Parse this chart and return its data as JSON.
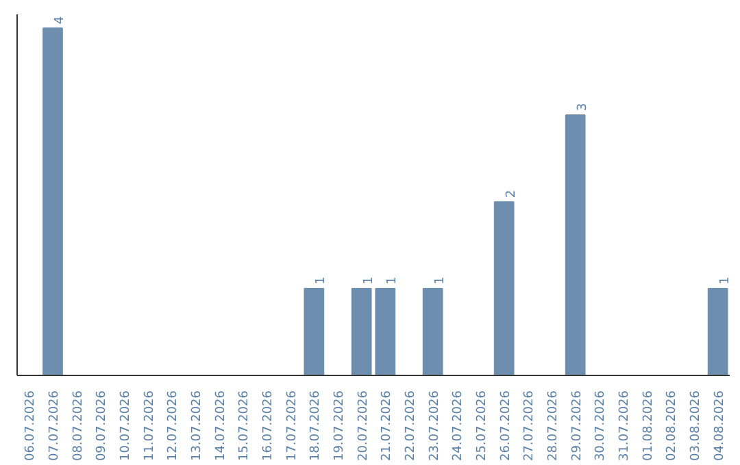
{
  "chart_data": {
    "type": "bar",
    "categories": [
      "06.07.2026",
      "07.07.2026",
      "08.07.2026",
      "09.07.2026",
      "10.07.2026",
      "11.07.2026",
      "12.07.2026",
      "13.07.2026",
      "14.07.2026",
      "15.07.2026",
      "16.07.2026",
      "17.07.2026",
      "18.07.2026",
      "19.07.2026",
      "20.07.2026",
      "21.07.2026",
      "22.07.2026",
      "23.07.2026",
      "24.07.2026",
      "25.07.2026",
      "26.07.2026",
      "27.07.2026",
      "28.07.2026",
      "29.07.2026",
      "30.07.2026",
      "31.07.2026",
      "01.08.2026",
      "02.08.2026",
      "03.08.2026",
      "04.08.2026"
    ],
    "values": [
      0,
      4,
      0,
      0,
      0,
      0,
      0,
      0,
      0,
      0,
      0,
      0,
      1,
      0,
      1,
      1,
      0,
      1,
      0,
      0,
      2,
      0,
      0,
      3,
      0,
      0,
      0,
      0,
      0,
      1
    ],
    "value_labels": [
      null,
      "4",
      null,
      null,
      null,
      null,
      null,
      null,
      null,
      null,
      null,
      null,
      "1",
      null,
      "1",
      "1",
      null,
      "1",
      null,
      null,
      "2",
      null,
      null,
      "3",
      null,
      null,
      null,
      null,
      null,
      "1"
    ],
    "color": "#6d8eae",
    "grid": false,
    "tick_labels": "x"
  }
}
